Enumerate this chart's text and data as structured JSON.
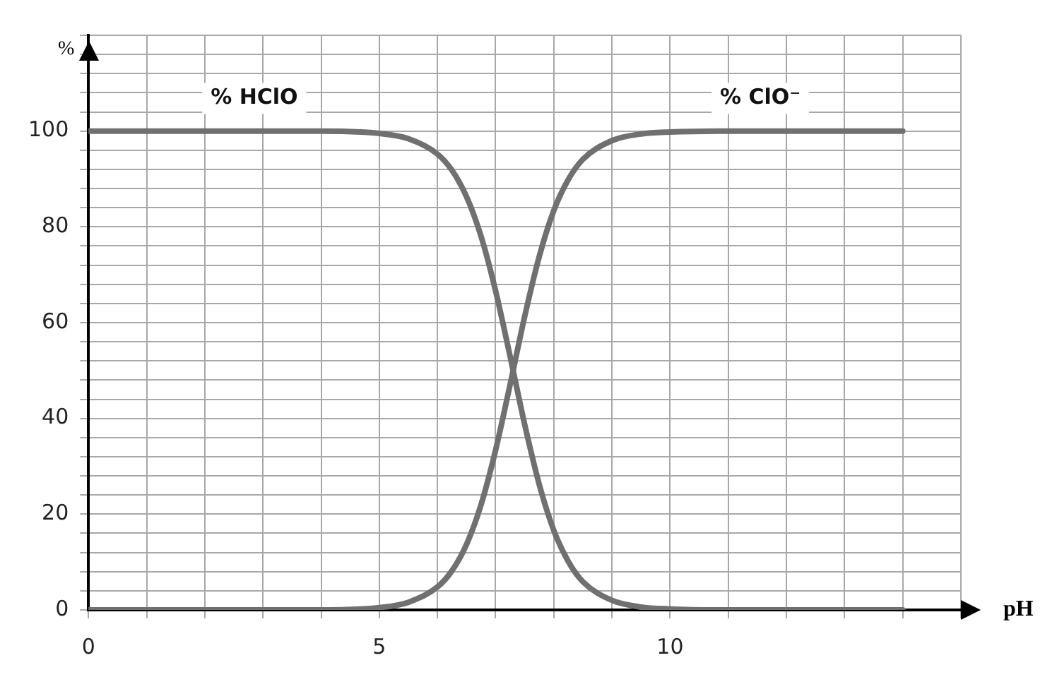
{
  "chart_data": {
    "type": "line",
    "xlabel": "pH",
    "ylabel": "%",
    "x": [
      0,
      1,
      2,
      3,
      4,
      5,
      5.5,
      6,
      6.25,
      6.5,
      6.75,
      7,
      7.25,
      7.5,
      7.75,
      8,
      8.25,
      8.5,
      9,
      9.5,
      10,
      11,
      12,
      13,
      14
    ],
    "series": [
      {
        "color": "#707070",
        "values": [
          100,
          100,
          100,
          100,
          100,
          99.5,
          98.4,
          95.2,
          91.8,
          86.3,
          78.0,
          66.6,
          52.9,
          38.7,
          26.2,
          16.6,
          10.1,
          5.9,
          2.0,
          0.6,
          0.2,
          0,
          0,
          0,
          0
        ]
      },
      {
        "color": "#707070",
        "values": [
          0,
          0,
          0,
          0,
          0,
          0.5,
          1.6,
          4.8,
          8.2,
          13.7,
          22.0,
          33.4,
          47.1,
          61.3,
          73.8,
          83.4,
          89.9,
          94.1,
          98.0,
          99.4,
          99.8,
          100,
          100,
          100,
          100
        ]
      }
    ],
    "xlim": [
      0,
      15
    ],
    "ylim": [
      0,
      120
    ],
    "xticks": [
      0,
      {
        "value": 1,
        "label": null
      },
      {
        "value": 2,
        "label": null
      },
      {
        "value": 3,
        "label": null
      },
      {
        "value": 4,
        "label": null
      },
      5,
      {
        "value": 6,
        "label": null
      },
      {
        "value": 7,
        "label": null
      },
      {
        "value": 8,
        "label": null
      },
      {
        "value": 9,
        "label": null
      },
      10,
      {
        "value": 11,
        "label": null
      },
      {
        "value": 12,
        "label": null
      },
      {
        "value": 13,
        "label": null
      },
      {
        "value": 14,
        "label": null
      },
      {
        "value": 15,
        "label": null
      }
    ],
    "yticks": [
      0,
      {
        "value": 4,
        "label": null
      },
      {
        "value": 8,
        "label": null
      },
      {
        "value": 12,
        "label": null
      },
      {
        "value": 16,
        "label": null
      },
      20,
      {
        "value": 24,
        "label": null
      },
      {
        "value": 28,
        "label": null
      },
      {
        "value": 32,
        "label": null
      },
      {
        "value": 36,
        "label": null
      },
      40,
      {
        "value": 44,
        "label": null
      },
      {
        "value": 48,
        "label": null
      },
      {
        "value": 52,
        "label": null
      },
      {
        "value": 56,
        "label": null
      },
      60,
      {
        "value": 64,
        "label": null
      },
      {
        "value": 68,
        "label": null
      },
      {
        "value": 72,
        "label": null
      },
      {
        "value": 76,
        "label": null
      },
      80,
      {
        "value": 84,
        "label": null
      },
      {
        "value": 88,
        "label": null
      },
      {
        "value": 92,
        "label": null
      },
      {
        "value": 96,
        "label": null
      },
      100,
      {
        "value": 104,
        "label": null
      },
      {
        "value": 108,
        "label": null
      },
      {
        "value": 112,
        "label": null
      },
      {
        "value": 116,
        "label": null
      },
      {
        "value": 120,
        "label": null
      }
    ],
    "grid": true,
    "legend": false,
    "marker": "none",
    "line_style": "solid",
    "annotations": [
      "% HClO",
      "% ClO⁻"
    ]
  }
}
